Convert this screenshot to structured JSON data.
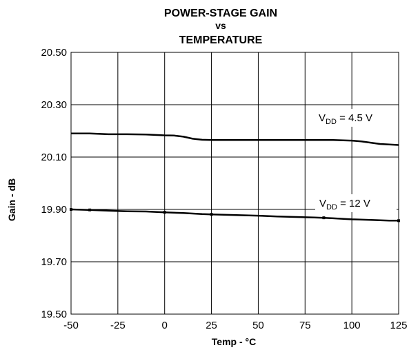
{
  "chart_data": {
    "type": "line",
    "title_lines": [
      "POWER-STAGE GAIN",
      "vs",
      "TEMPERATURE"
    ],
    "xlabel": "Temp - °C",
    "ylabel": "Gain - dB",
    "xlim": [
      -50,
      125
    ],
    "ylim": [
      19.5,
      20.5
    ],
    "x_ticks": [
      -50,
      -25,
      0,
      25,
      50,
      75,
      100,
      125
    ],
    "y_ticks": [
      19.5,
      19.7,
      19.9,
      20.1,
      20.3,
      20.5
    ],
    "x_tick_labels": [
      "-50",
      "-25",
      "0",
      "25",
      "50",
      "75",
      "100",
      "125"
    ],
    "y_tick_labels": [
      "19.50",
      "19.70",
      "19.90",
      "20.10",
      "20.30",
      "20.50"
    ],
    "grid": true,
    "series": [
      {
        "name": "VDD = 4.5 V",
        "label_main": "V",
        "label_sub": "DD",
        "label_rest": " = 4.5 V",
        "color": "#000000",
        "x": [
          -50,
          -40,
          -30,
          -20,
          -10,
          0,
          5,
          10,
          15,
          20,
          25,
          40,
          60,
          80,
          90,
          100,
          105,
          110,
          115,
          120,
          125
        ],
        "y": [
          20.19,
          20.19,
          20.187,
          20.187,
          20.186,
          20.183,
          20.182,
          20.178,
          20.17,
          20.166,
          20.165,
          20.165,
          20.165,
          20.165,
          20.165,
          20.163,
          20.16,
          20.155,
          20.15,
          20.148,
          20.146
        ]
      },
      {
        "name": "VDD = 12 V",
        "label_main": "V",
        "label_sub": "DD",
        "label_rest": " = 12 V",
        "color": "#000000",
        "x": [
          -50,
          -40,
          -30,
          -20,
          -10,
          0,
          10,
          20,
          25,
          30,
          40,
          50,
          60,
          70,
          80,
          85,
          90,
          100,
          110,
          120,
          125
        ],
        "y": [
          19.9,
          19.898,
          19.895,
          19.893,
          19.892,
          19.889,
          19.886,
          19.882,
          19.881,
          19.88,
          19.878,
          19.876,
          19.873,
          19.871,
          19.869,
          19.868,
          19.866,
          19.862,
          19.86,
          19.857,
          19.857
        ]
      }
    ]
  }
}
